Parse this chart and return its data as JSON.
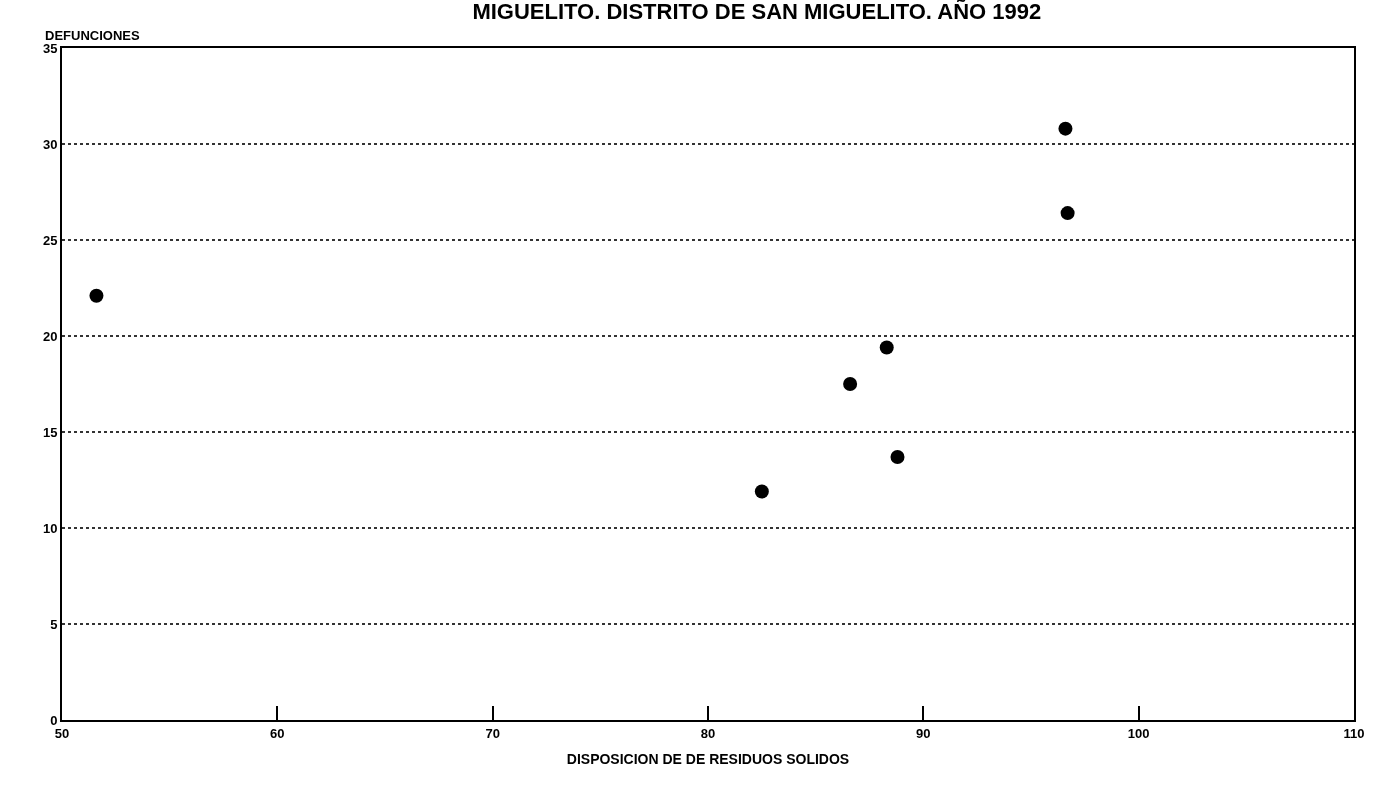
{
  "chart_data": {
    "type": "scatter",
    "title": "MIGUELITO. DISTRITO DE SAN MIGUELITO. AÑO 1992",
    "xlabel": "DISPOSICION DE DE RESIDUOS SOLIDOS",
    "ylabel": "DEFUNCIONES",
    "x": [
      96.6,
      96.7,
      51.6,
      88.3,
      86.6,
      88.8,
      82.5
    ],
    "values": [
      30.8,
      26.4,
      22.1,
      19.4,
      17.5,
      13.7,
      11.9
    ],
    "color": "#000000",
    "marker": "circle",
    "xlim": [
      50,
      110
    ],
    "xticks": [
      50,
      60,
      70,
      80,
      90,
      100,
      110
    ],
    "ylim": [
      0,
      35
    ],
    "yticks": [
      0,
      5,
      10,
      15,
      20,
      25,
      30,
      35
    ],
    "grid": "y"
  }
}
